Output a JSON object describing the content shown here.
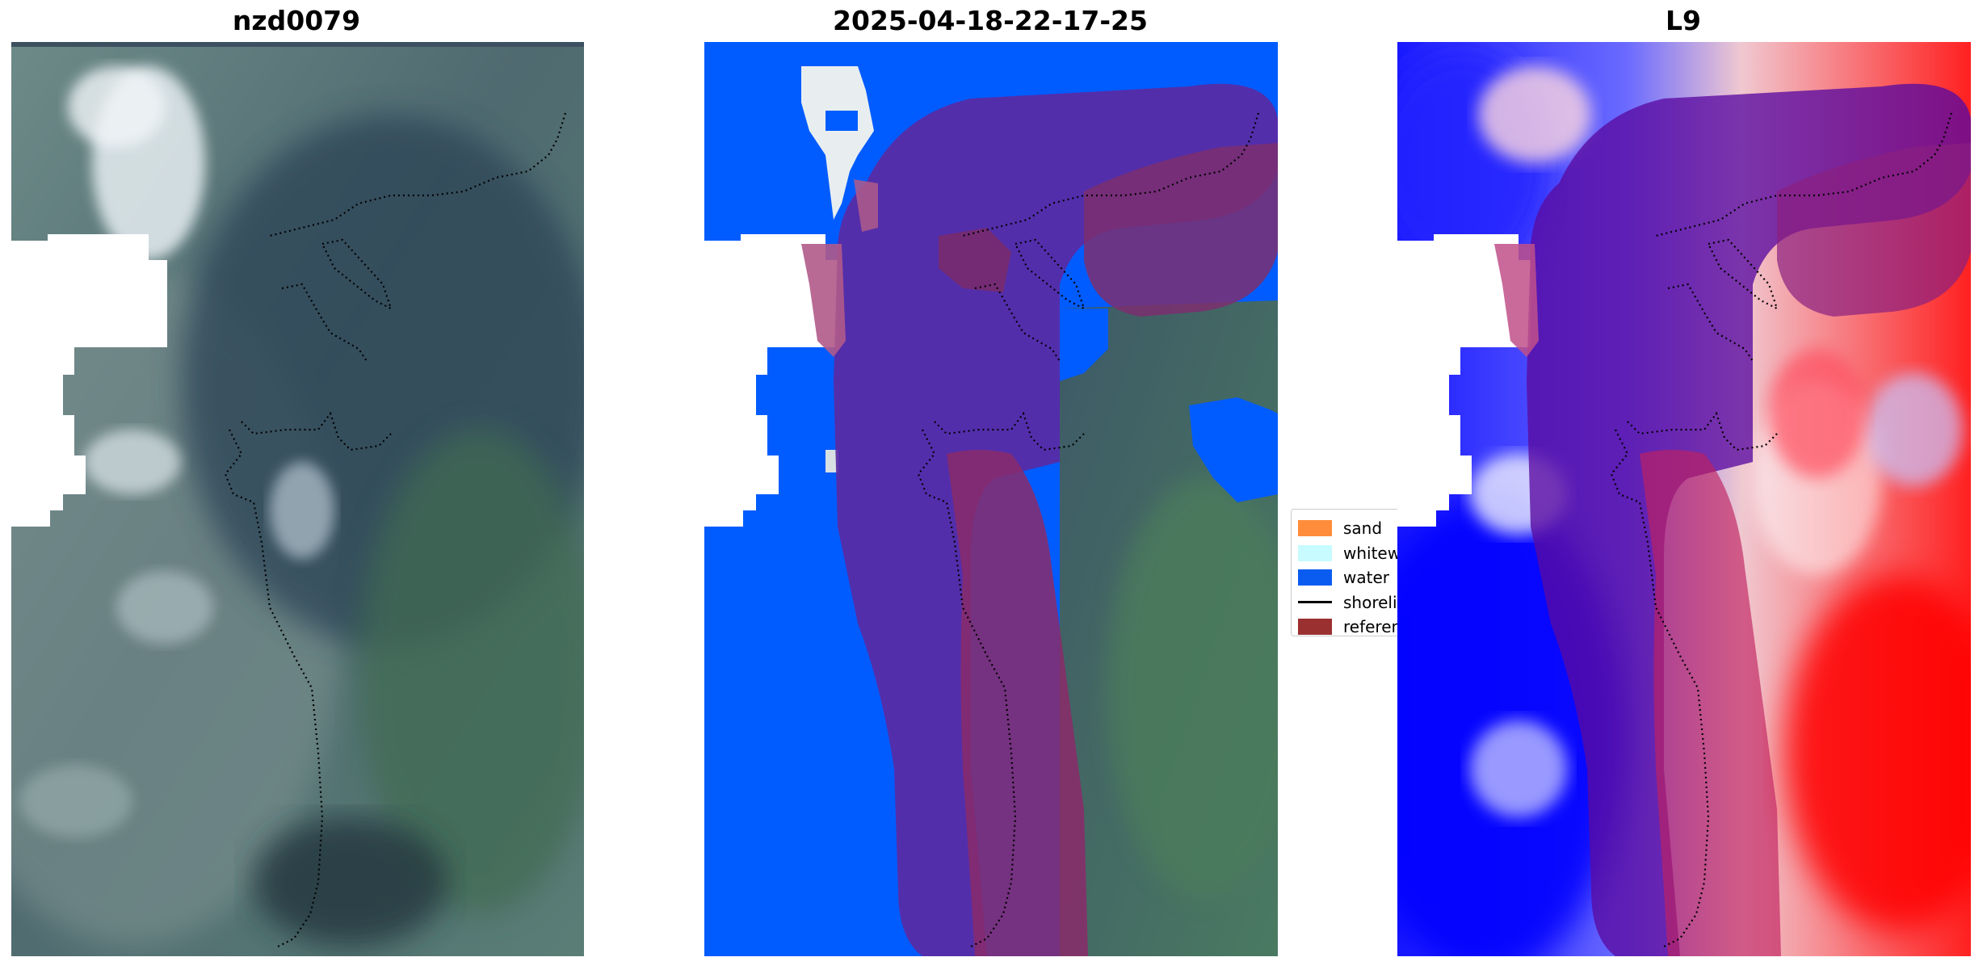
{
  "panels": [
    {
      "title": "nzd0079"
    },
    {
      "title": "2025-04-18-22-17-25"
    },
    {
      "title": "L9"
    }
  ],
  "legend": {
    "items": [
      {
        "label": "sand",
        "color": "#ff8c3a",
        "kind": "patch"
      },
      {
        "label": "whitewater",
        "color": "#c8fbff",
        "kind": "patch"
      },
      {
        "label": "water",
        "color": "#0a5cf0",
        "kind": "patch"
      },
      {
        "label": "shoreline",
        "color": "#000000",
        "kind": "line"
      },
      {
        "label": "reference",
        "color": "#9b3030",
        "kind": "patch"
      }
    ]
  },
  "colors": {
    "water_class": "#005cff",
    "reference_buffer": "#6a2a9a",
    "reference_buffer_light": "#c0507a",
    "cloud_mask": "#ffffff",
    "index_low": "#0000ff",
    "index_high": "#ff0000"
  }
}
